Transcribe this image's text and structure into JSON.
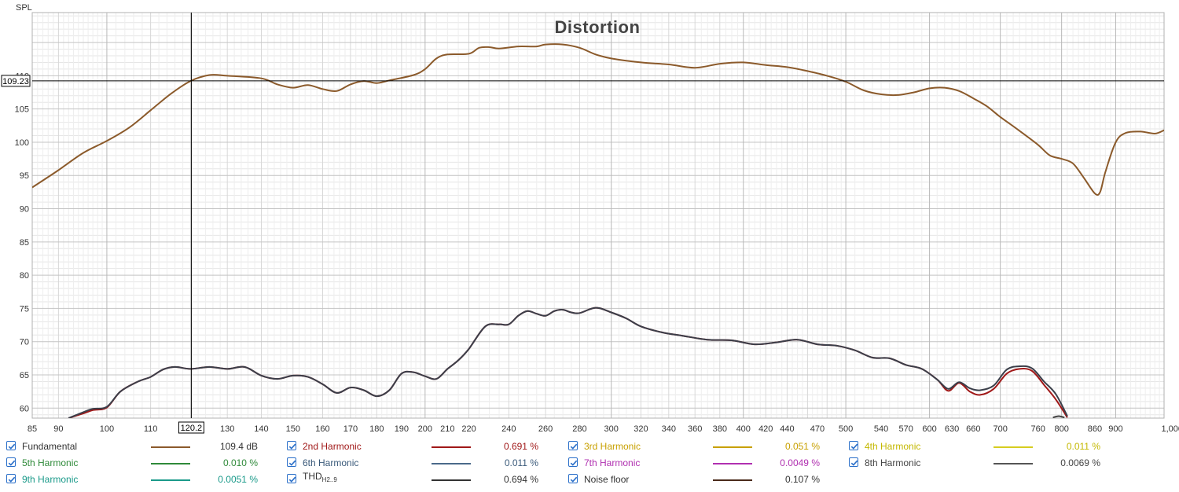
{
  "chart_data": {
    "type": "line",
    "title": "Distortion",
    "ylabel": "SPL",
    "x_unit": "Hz",
    "x_scale": "log",
    "xlim": [
      85,
      1000
    ],
    "ylim": [
      58.5,
      119.5
    ],
    "grid": true,
    "y_ticks": [
      60,
      65,
      70,
      75,
      80,
      85,
      90,
      95,
      100,
      105,
      110
    ],
    "y_tick_labels": [
      "60",
      "65",
      "70",
      "75",
      "80",
      "85",
      "90",
      "95",
      "100",
      "105",
      "110"
    ],
    "x_ticks": [
      85,
      90,
      100,
      110,
      120.2,
      130,
      140,
      150,
      160,
      170,
      180,
      190,
      200,
      210,
      220,
      240,
      260,
      280,
      300,
      320,
      340,
      360,
      380,
      400,
      420,
      440,
      470,
      500,
      540,
      570,
      600,
      630,
      660,
      700,
      760,
      800,
      860,
      900,
      1000
    ],
    "x_tick_labels": [
      "85",
      "90",
      "100",
      "110",
      "120.2",
      "130",
      "140",
      "150",
      "160",
      "170",
      "180",
      "190",
      "200",
      "210",
      "220",
      "240",
      "260",
      "280",
      "300",
      "320",
      "340",
      "360",
      "380",
      "400",
      "420",
      "440",
      "470",
      "500",
      "540",
      "570",
      "600",
      "630",
      "660",
      "700",
      "760",
      "800",
      "860",
      "900",
      "1,000Hz"
    ],
    "cursor": {
      "x": 120.2,
      "y": 109.23,
      "x_label": "120.2",
      "y_label": "109.23"
    },
    "series": [
      {
        "name": "Fundamental",
        "color": "#8b5a2b",
        "points": [
          [
            85,
            93.2
          ],
          [
            90,
            95.8
          ],
          [
            95,
            98.4
          ],
          [
            100,
            100.2
          ],
          [
            105,
            102.2
          ],
          [
            110,
            104.8
          ],
          [
            115,
            107.3
          ],
          [
            120,
            109.2
          ],
          [
            125,
            110.1
          ],
          [
            130,
            110.0
          ],
          [
            140,
            109.6
          ],
          [
            145,
            108.7
          ],
          [
            150,
            108.2
          ],
          [
            155,
            108.6
          ],
          [
            160,
            108.0
          ],
          [
            165,
            107.7
          ],
          [
            170,
            108.7
          ],
          [
            175,
            109.2
          ],
          [
            180,
            108.9
          ],
          [
            185,
            109.3
          ],
          [
            195,
            110.1
          ],
          [
            200,
            111.0
          ],
          [
            205,
            112.6
          ],
          [
            210,
            113.2
          ],
          [
            220,
            113.3
          ],
          [
            225,
            114.2
          ],
          [
            230,
            114.3
          ],
          [
            235,
            114.1
          ],
          [
            245,
            114.4
          ],
          [
            255,
            114.4
          ],
          [
            260,
            114.7
          ],
          [
            270,
            114.7
          ],
          [
            280,
            114.2
          ],
          [
            290,
            113.2
          ],
          [
            300,
            112.6
          ],
          [
            320,
            112.0
          ],
          [
            340,
            111.7
          ],
          [
            360,
            111.2
          ],
          [
            380,
            111.8
          ],
          [
            400,
            112.0
          ],
          [
            420,
            111.6
          ],
          [
            440,
            111.3
          ],
          [
            460,
            110.7
          ],
          [
            480,
            110.0
          ],
          [
            500,
            109.1
          ],
          [
            520,
            107.8
          ],
          [
            540,
            107.2
          ],
          [
            560,
            107.1
          ],
          [
            580,
            107.5
          ],
          [
            600,
            108.1
          ],
          [
            620,
            108.2
          ],
          [
            640,
            107.7
          ],
          [
            660,
            106.6
          ],
          [
            680,
            105.4
          ],
          [
            700,
            103.8
          ],
          [
            730,
            101.7
          ],
          [
            760,
            99.6
          ],
          [
            780,
            98.0
          ],
          [
            800,
            97.5
          ],
          [
            820,
            96.8
          ],
          [
            840,
            94.6
          ],
          [
            860,
            92.3
          ],
          [
            870,
            92.5
          ],
          [
            880,
            95.5
          ],
          [
            900,
            100.0
          ],
          [
            920,
            101.4
          ],
          [
            950,
            101.6
          ],
          [
            980,
            101.3
          ],
          [
            1000,
            101.8
          ]
        ]
      },
      {
        "name": "2nd Harmonic",
        "color": "#a01818",
        "points": [
          [
            92,
            58.5
          ],
          [
            95,
            59.2
          ],
          [
            97,
            59.7
          ],
          [
            100,
            60.1
          ],
          [
            103,
            62.5
          ],
          [
            107,
            64.0
          ],
          [
            110,
            64.7
          ],
          [
            113,
            65.8
          ],
          [
            116,
            66.2
          ],
          [
            120,
            65.9
          ],
          [
            125,
            66.2
          ],
          [
            130,
            65.9
          ],
          [
            135,
            66.2
          ],
          [
            140,
            64.9
          ],
          [
            145,
            64.4
          ],
          [
            150,
            64.9
          ],
          [
            155,
            64.7
          ],
          [
            160,
            63.6
          ],
          [
            165,
            62.3
          ],
          [
            170,
            63.1
          ],
          [
            175,
            62.7
          ],
          [
            180,
            61.8
          ],
          [
            185,
            62.7
          ],
          [
            190,
            65.2
          ],
          [
            195,
            65.4
          ],
          [
            200,
            64.8
          ],
          [
            205,
            64.4
          ],
          [
            210,
            65.9
          ],
          [
            215,
            67.2
          ],
          [
            220,
            68.9
          ],
          [
            228,
            72.3
          ],
          [
            235,
            72.6
          ],
          [
            240,
            72.6
          ],
          [
            245,
            73.9
          ],
          [
            250,
            74.6
          ],
          [
            255,
            74.2
          ],
          [
            260,
            73.9
          ],
          [
            265,
            74.6
          ],
          [
            270,
            74.8
          ],
          [
            275,
            74.4
          ],
          [
            280,
            74.3
          ],
          [
            290,
            75.1
          ],
          [
            300,
            74.4
          ],
          [
            310,
            73.5
          ],
          [
            320,
            72.3
          ],
          [
            335,
            71.4
          ],
          [
            350,
            70.9
          ],
          [
            370,
            70.3
          ],
          [
            390,
            70.2
          ],
          [
            410,
            69.6
          ],
          [
            430,
            69.9
          ],
          [
            450,
            70.3
          ],
          [
            470,
            69.6
          ],
          [
            490,
            69.4
          ],
          [
            510,
            68.7
          ],
          [
            530,
            67.6
          ],
          [
            550,
            67.5
          ],
          [
            570,
            66.5
          ],
          [
            590,
            65.9
          ],
          [
            610,
            64.3
          ],
          [
            625,
            62.6
          ],
          [
            640,
            63.8
          ],
          [
            655,
            62.5
          ],
          [
            670,
            62.0
          ],
          [
            690,
            62.9
          ],
          [
            710,
            65.2
          ],
          [
            730,
            65.9
          ],
          [
            750,
            65.6
          ],
          [
            770,
            63.5
          ],
          [
            790,
            61.3
          ],
          [
            810,
            58.6
          ]
        ]
      },
      {
        "name": "THD",
        "color": "#3b3f4a",
        "points": [
          [
            92,
            58.5
          ],
          [
            95,
            59.4
          ],
          [
            97,
            59.9
          ],
          [
            100,
            60.2
          ],
          [
            103,
            62.5
          ],
          [
            107,
            64.0
          ],
          [
            110,
            64.7
          ],
          [
            113,
            65.8
          ],
          [
            116,
            66.2
          ],
          [
            120,
            65.9
          ],
          [
            125,
            66.2
          ],
          [
            130,
            65.9
          ],
          [
            135,
            66.2
          ],
          [
            140,
            64.9
          ],
          [
            145,
            64.4
          ],
          [
            150,
            64.9
          ],
          [
            155,
            64.7
          ],
          [
            160,
            63.6
          ],
          [
            165,
            62.3
          ],
          [
            170,
            63.1
          ],
          [
            175,
            62.7
          ],
          [
            180,
            61.8
          ],
          [
            185,
            62.7
          ],
          [
            190,
            65.2
          ],
          [
            195,
            65.4
          ],
          [
            200,
            64.8
          ],
          [
            205,
            64.4
          ],
          [
            210,
            65.9
          ],
          [
            215,
            67.2
          ],
          [
            220,
            68.9
          ],
          [
            228,
            72.3
          ],
          [
            235,
            72.6
          ],
          [
            240,
            72.6
          ],
          [
            245,
            73.9
          ],
          [
            250,
            74.6
          ],
          [
            255,
            74.2
          ],
          [
            260,
            73.9
          ],
          [
            265,
            74.6
          ],
          [
            270,
            74.8
          ],
          [
            275,
            74.4
          ],
          [
            280,
            74.3
          ],
          [
            290,
            75.1
          ],
          [
            300,
            74.4
          ],
          [
            310,
            73.5
          ],
          [
            320,
            72.3
          ],
          [
            335,
            71.4
          ],
          [
            350,
            70.9
          ],
          [
            370,
            70.3
          ],
          [
            390,
            70.2
          ],
          [
            410,
            69.6
          ],
          [
            430,
            69.9
          ],
          [
            450,
            70.3
          ],
          [
            470,
            69.6
          ],
          [
            490,
            69.4
          ],
          [
            510,
            68.7
          ],
          [
            530,
            67.6
          ],
          [
            550,
            67.5
          ],
          [
            570,
            66.5
          ],
          [
            590,
            65.9
          ],
          [
            610,
            64.3
          ],
          [
            625,
            62.9
          ],
          [
            640,
            63.9
          ],
          [
            655,
            63.0
          ],
          [
            670,
            62.7
          ],
          [
            690,
            63.4
          ],
          [
            710,
            65.8
          ],
          [
            730,
            66.3
          ],
          [
            750,
            66.0
          ],
          [
            770,
            64.0
          ],
          [
            790,
            62.1
          ],
          [
            810,
            58.8
          ]
        ]
      },
      {
        "name": "8th Harmonic",
        "color": "#444444",
        "points": [
          [
            785,
            58.6
          ],
          [
            795,
            58.8
          ],
          [
            805,
            58.6
          ]
        ]
      }
    ],
    "legend": [
      {
        "name": "Fundamental",
        "value": "109.4 dB",
        "color": "#8b5a2b",
        "text_color": "#333333",
        "checked": true
      },
      {
        "name": "2nd Harmonic",
        "value": "0.691 %",
        "color": "#a01818",
        "text_color": "#a01818",
        "checked": true
      },
      {
        "name": "3rd Harmonic",
        "value": "0.051 %",
        "color": "#c8a000",
        "text_color": "#c8a000",
        "checked": true
      },
      {
        "name": "4th Harmonic",
        "value": "0.011 %",
        "color": "#d6cd20",
        "text_color": "#c4b800",
        "checked": true
      },
      {
        "name": "5th Harmonic",
        "value": "0.010 %",
        "color": "#2f8a3a",
        "text_color": "#2f8a3a",
        "checked": true
      },
      {
        "name": "6th Harmonic",
        "value": "0.011 %",
        "color": "#4a6a8a",
        "text_color": "#3a5a7a",
        "checked": true
      },
      {
        "name": "7th Harmonic",
        "value": "0.0049 %",
        "color": "#b030b0",
        "text_color": "#b030b0",
        "checked": true
      },
      {
        "name": "8th Harmonic",
        "value": "0.0069 %",
        "color": "#555555",
        "text_color": "#444444",
        "checked": true
      },
      {
        "name": "9th Harmonic",
        "value": "0.0051 %",
        "color": "#1a9a8a",
        "text_color": "#1a9a8a",
        "checked": true
      },
      {
        "name": "THD",
        "name_sub": "H2..9",
        "value": "0.694 %",
        "color": "#333333",
        "text_color": "#333333",
        "checked": true
      },
      {
        "name": "Noise floor",
        "value": "0.107 %",
        "color": "#4a2a1a",
        "text_color": "#333333",
        "checked": true
      }
    ]
  }
}
